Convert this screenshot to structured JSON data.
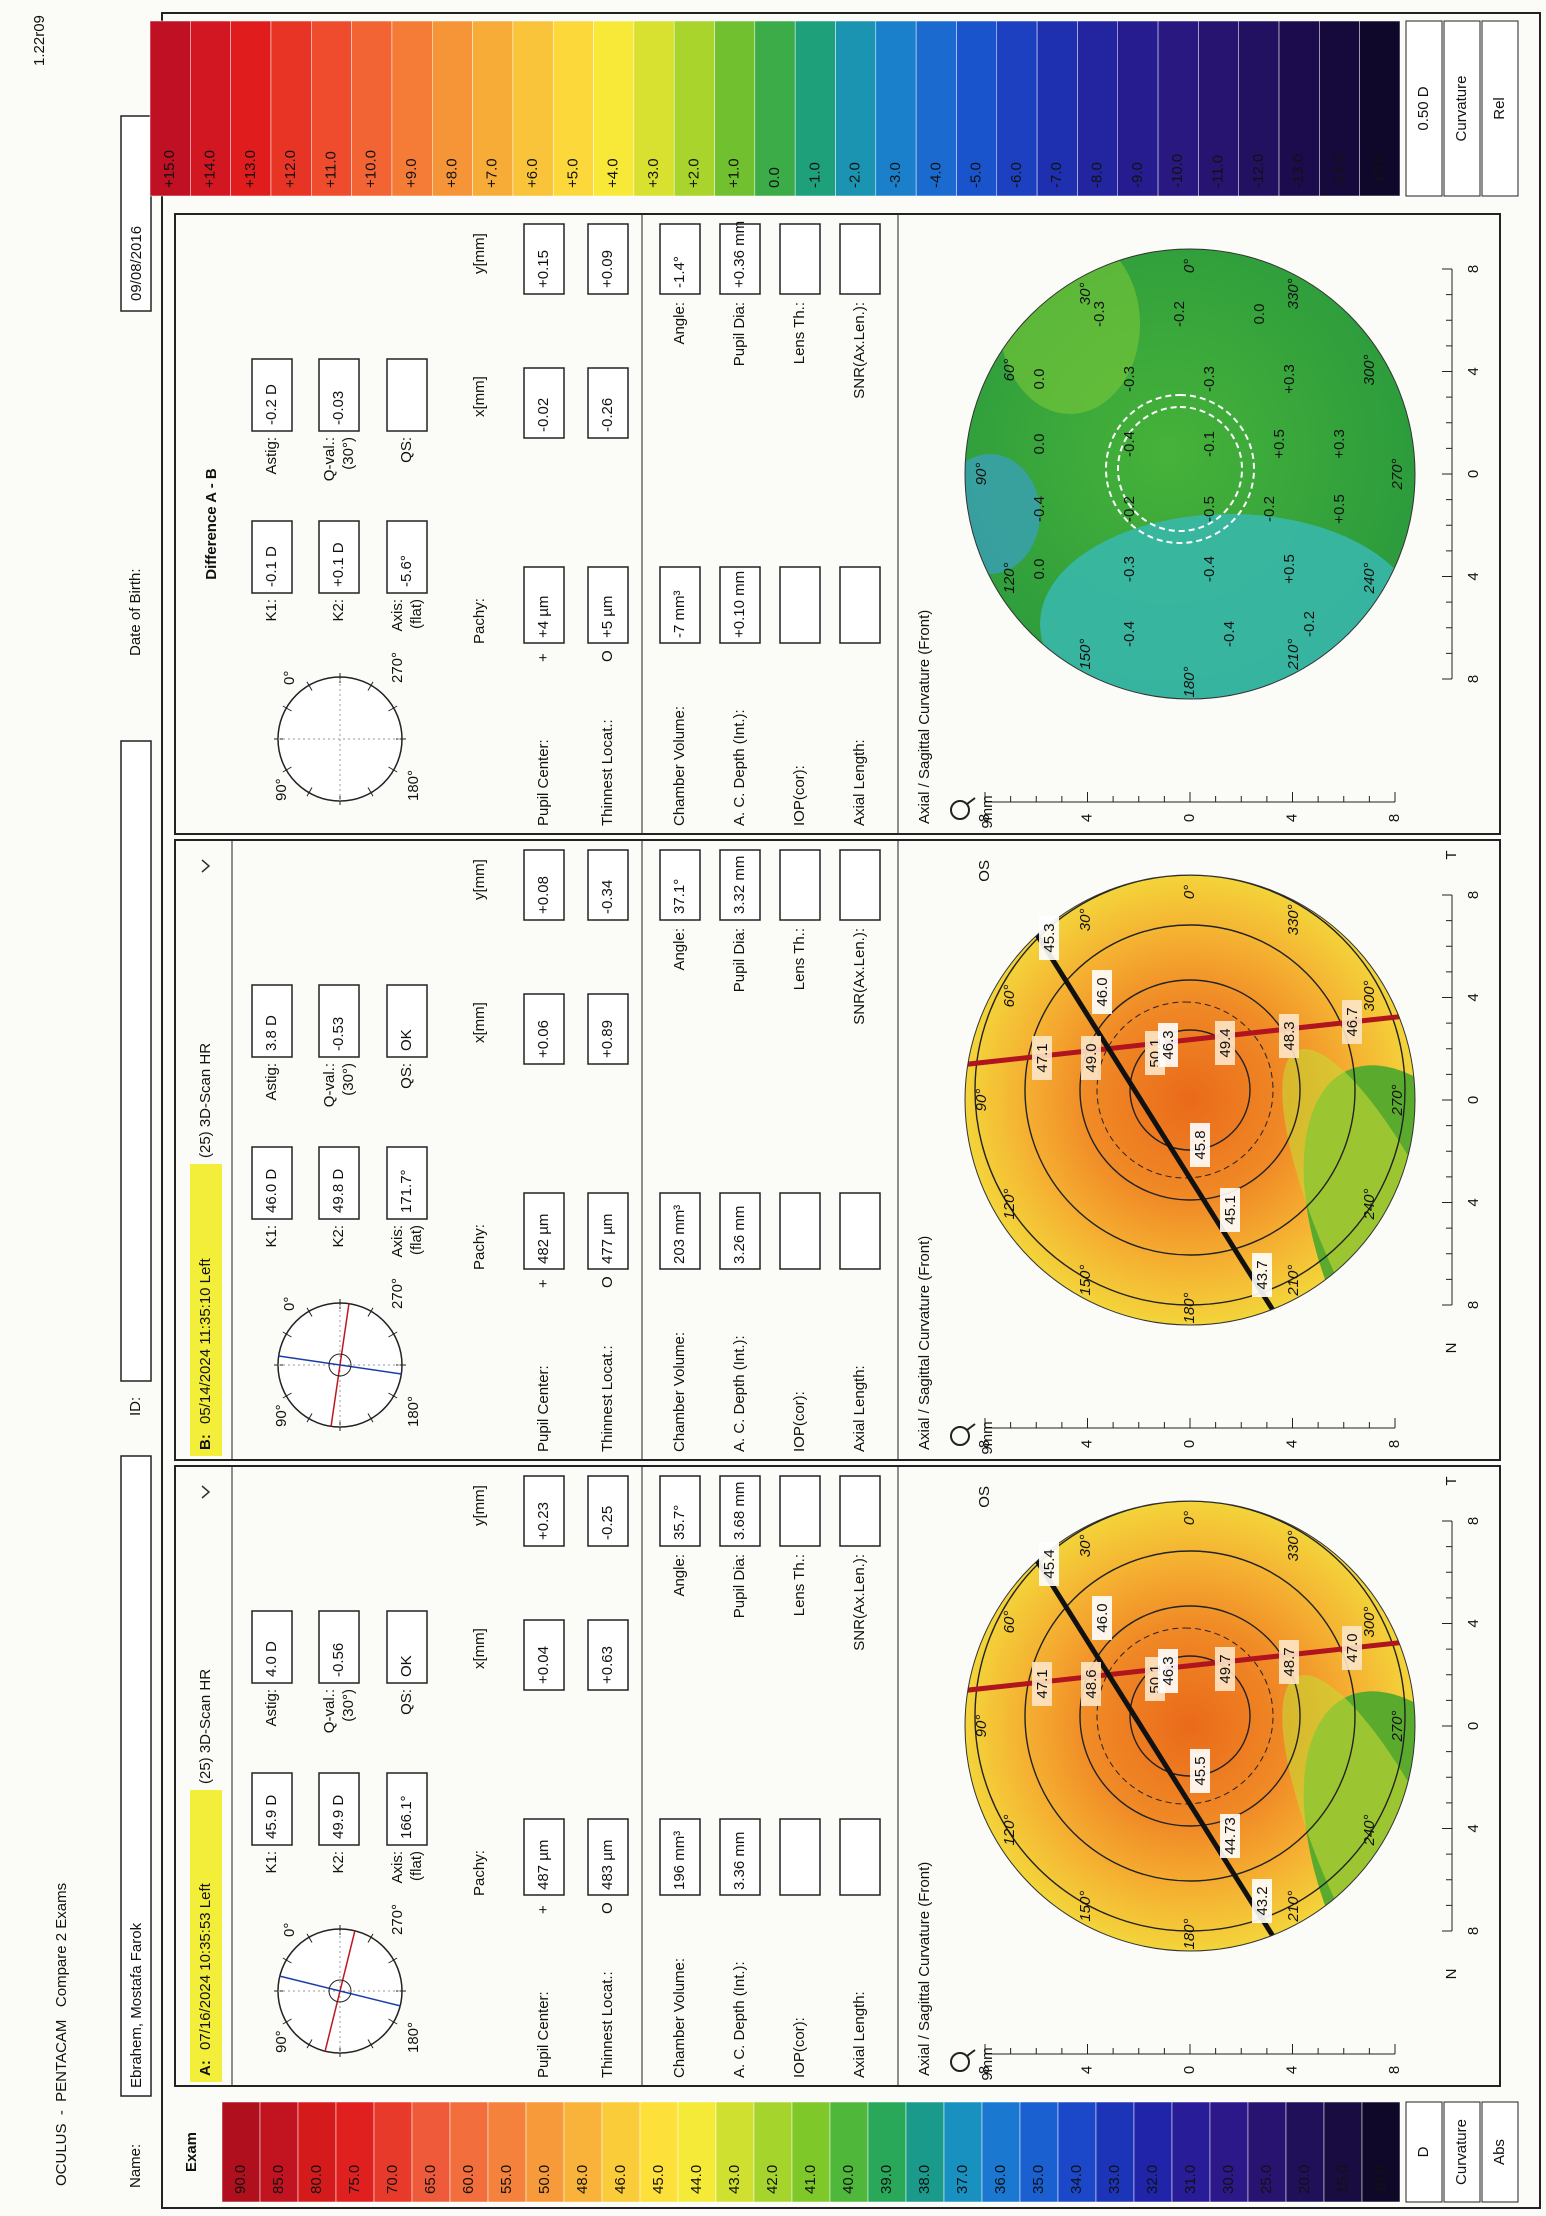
{
  "header": {
    "title": "OCULUS  -  PENTACAM   Compare 2 Exams",
    "version": "1.22r09",
    "name_label": "Name:",
    "name": "Ebrahem, Mostafa Farok",
    "id_label": "ID:",
    "dob_label": "Date of Birth:",
    "dob": "09/08/2016"
  },
  "labels": {
    "k1": "K1:",
    "k2": "K2:",
    "axis": "Axis:",
    "axis_sub": "(flat)",
    "astig": "Astig:",
    "qval": "Q-val.:",
    "qval_sub": "(30°)",
    "qs": "QS:",
    "pachy": "Pachy:",
    "x": "x[mm]",
    "y": "y[mm]",
    "pupil_center": "Pupil Center:",
    "thinnest": "Thinnest Locat.:",
    "plus": "+",
    "circle": "O",
    "chamber_volume": "Chamber Volume:",
    "angle": "Angle:",
    "ac_depth": "A. C. Depth (Int.):",
    "pupil_dia": "Pupil Dia:",
    "iop": "IOP(cor):",
    "lens": "Lens Th.:",
    "axial_length": "Axial Length:",
    "snr": "SNR(Ax.Len.):",
    "map_title": "Axial / Sagittal Curvature (Front)",
    "zone": "9mm",
    "nasal": "N",
    "temporal": "T",
    "angles": [
      "0°",
      "30°",
      "60°",
      "90°",
      "120°",
      "150°",
      "180°",
      "210°",
      "240°",
      "270°",
      "300°",
      "330°"
    ],
    "ruler": [
      "8",
      "4",
      "0",
      "4",
      "8"
    ]
  },
  "abs_scale": {
    "title": "Exam",
    "values": [
      "90.0",
      "85.0",
      "80.0",
      "75.0",
      "70.0",
      "65.0",
      "60.0",
      "55.0",
      "50.0",
      "48.0",
      "46.0",
      "45.0",
      "44.0",
      "43.0",
      "42.0",
      "41.0",
      "40.0",
      "39.0",
      "38.0",
      "37.0",
      "36.0",
      "35.0",
      "34.0",
      "33.0",
      "32.0",
      "31.0",
      "30.0",
      "25.0",
      "20.0",
      "15.0",
      "10.0"
    ],
    "colors": [
      "#b0101e",
      "#c21420",
      "#d41a1a",
      "#e01f1f",
      "#e83a2a",
      "#ef5a3a",
      "#f26e3c",
      "#f5823c",
      "#f79a3a",
      "#f9b23a",
      "#fbcc3a",
      "#fde03a",
      "#f6ea38",
      "#cfe030",
      "#a5d52c",
      "#7fc82a",
      "#4fb83a",
      "#2aa85a",
      "#1a9a8a",
      "#1890c0",
      "#1a78d0",
      "#1a60d0",
      "#1a48c8",
      "#1c34b8",
      "#2024a8",
      "#281c98",
      "#2c1888",
      "#281470",
      "#20105a",
      "#180c40",
      "#100828"
    ],
    "unit": "D",
    "quantity": "Curvature",
    "mode": "Abs"
  },
  "rel_scale": {
    "values": [
      "+15.0",
      "+14.0",
      "+13.0",
      "+12.0",
      "+11.0",
      "+10.0",
      "+9.0",
      "+8.0",
      "+7.0",
      "+6.0",
      "+5.0",
      "+4.0",
      "+3.0",
      "+2.0",
      "+1.0",
      "0.0",
      "-1.0",
      "-2.0",
      "-3.0",
      "-4.0",
      "-5.0",
      "-6.0",
      "-7.0",
      "-8.0",
      "-9.0",
      "-10.0",
      "-11.0",
      "-12.0",
      "-13.0",
      "-14.0",
      "-15.0"
    ],
    "colors": [
      "#c01024",
      "#d21622",
      "#e01c1c",
      "#e83424",
      "#ee4c2c",
      "#f26434",
      "#f47c36",
      "#f69438",
      "#f8ac38",
      "#fac43a",
      "#fcd83a",
      "#f8e838",
      "#d8e030",
      "#a8d42c",
      "#70c030",
      "#3cac48",
      "#1ea07a",
      "#1a94b0",
      "#1a80cc",
      "#1a6ad0",
      "#1a54cc",
      "#1c40c0",
      "#1e30b0",
      "#2224a0",
      "#261c90",
      "#281880",
      "#261470",
      "#221060",
      "#1c0c4e",
      "#160a3c",
      "#10082a"
    ],
    "unit": "0.50 D",
    "quantity": "Curvature",
    "mode": "Rel"
  },
  "panels": [
    {
      "label": "A:",
      "date": "07/16/2024 10:35:53 Left",
      "scan": "(25) 3D-Scan HR",
      "k1": "45.9 D",
      "k2": "49.9 D",
      "axis": "166.1°",
      "astig": "4.0 D",
      "qval": "-0.56",
      "qs": "OK",
      "pupil_center": {
        "pachy": "487 µm",
        "x": "+0.04",
        "y": "+0.23"
      },
      "thinnest": {
        "pachy": "483 µm",
        "x": "+0.63",
        "y": "-0.25"
      },
      "chamber_volume": "196 mm³",
      "angle": "35.7°",
      "ac_depth": "3.36 mm",
      "pupil_dia": "3.68 mm",
      "eye": "OS",
      "map_values": [
        "47.1",
        "48.6",
        "50.1",
        "49.7",
        "48.7",
        "47.0",
        "45.4",
        "46.0",
        "46.3",
        "45.5",
        "44.73",
        "43.2"
      ]
    },
    {
      "label": "B:",
      "date": "05/14/2024 11:35:10 Left",
      "scan": "(25) 3D-Scan HR",
      "k1": "46.0 D",
      "k2": "49.8 D",
      "axis": "171.7°",
      "astig": "3.8 D",
      "qval": "-0.53",
      "qs": "OK",
      "pupil_center": {
        "pachy": "482 µm",
        "x": "+0.06",
        "y": "+0.08"
      },
      "thinnest": {
        "pachy": "477 µm",
        "x": "+0.89",
        "y": "-0.34"
      },
      "chamber_volume": "203 mm³",
      "angle": "37.1°",
      "ac_depth": "3.26 mm",
      "pupil_dia": "3.32 mm",
      "eye": "OS",
      "map_values": [
        "47.1",
        "49.0",
        "50.1",
        "49.4",
        "48.3",
        "46.7",
        "45.3",
        "46.0",
        "46.3",
        "45.8",
        "45.1",
        "43.7"
      ]
    },
    {
      "title": "Difference A - B",
      "k1": "-0.1 D",
      "k2": "+0.1 D",
      "axis": "-5.6°",
      "astig": "-0.2 D",
      "qval": "-0.03",
      "pupil_center": {
        "pachy": "+4 µm",
        "x": "-0.02",
        "y": "+0.15"
      },
      "thinnest": {
        "pachy": "+5 µm",
        "x": "-0.26",
        "y": "+0.09"
      },
      "chamber_volume": "-7 mm³",
      "angle": "-1.4°",
      "ac_depth": "+0.10 mm",
      "pupil_dia": "+0.36 mm",
      "map_values": [
        "-0.4",
        "-0.4",
        "-0.2",
        "0.0",
        "-0.3",
        "-0.4",
        "+0.5",
        "-0.4",
        "-0.2",
        "-0.5",
        "-0.2",
        "+0.5",
        "0.0",
        "-0.4",
        "-0.1",
        "+0.5",
        "+0.3",
        "0.0",
        "-0.3",
        "-0.3",
        "+0.3",
        "-0.3",
        "-0.2",
        "0.0"
      ]
    }
  ]
}
